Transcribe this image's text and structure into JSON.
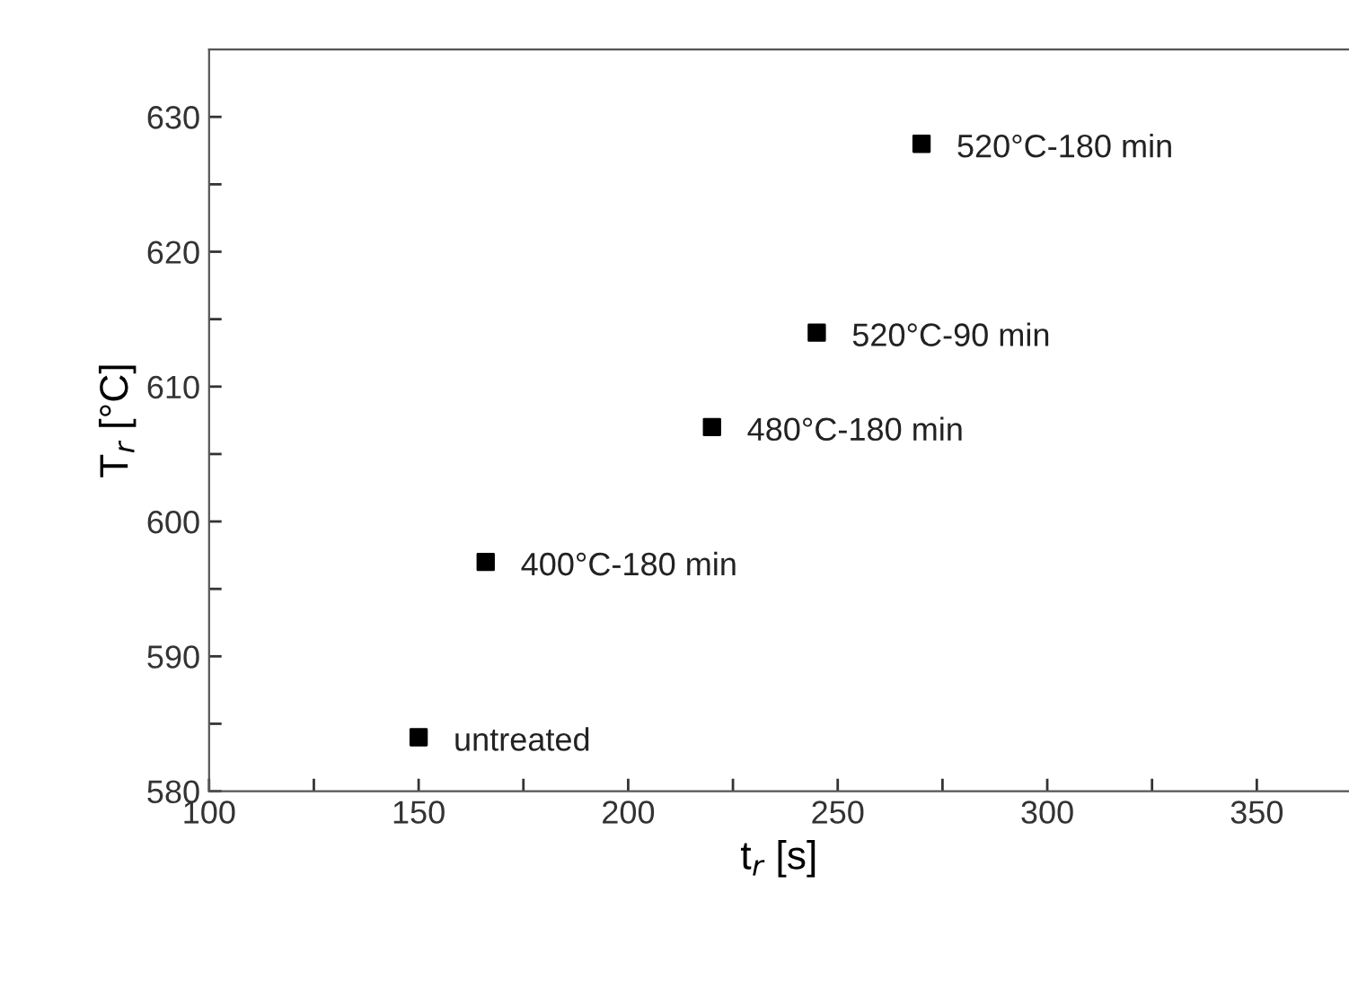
{
  "chart_data": {
    "type": "scatter",
    "xlabel": "t$_{r}$ [s]",
    "ylabel": "T$_{r}$ [°C]",
    "x": [
      150,
      166,
      220,
      245,
      270
    ],
    "values": [
      584,
      597,
      607,
      614,
      628
    ],
    "color": "#000000",
    "marker": "square",
    "grid": false,
    "legend": false,
    "xlim": [
      100,
      372
    ],
    "ylim": [
      580,
      635
    ],
    "xticks": [
      100,
      {
        "value": 125,
        "label": null
      },
      150,
      {
        "value": 175,
        "label": null
      },
      200,
      {
        "value": 225,
        "label": null
      },
      250,
      {
        "value": 275,
        "label": null
      },
      300,
      {
        "value": 325,
        "label": null
      },
      350
    ],
    "yticks": [
      580,
      {
        "value": 585,
        "label": null
      },
      590,
      {
        "value": 595,
        "label": null
      },
      600,
      {
        "value": 605,
        "label": null
      },
      610,
      {
        "value": 615,
        "label": null
      },
      620,
      {
        "value": 625,
        "label": null
      },
      630
    ],
    "annotations": [
      {
        "text": "untreated",
        "x": 150,
        "y": 584
      },
      {
        "text": "400°C-180 min",
        "x": 166,
        "y": 597
      },
      {
        "text": "480°C-180 min",
        "x": 220,
        "y": 607
      },
      {
        "text": "520°C-90 min",
        "x": 245,
        "y": 614
      },
      {
        "text": "520°C-180 min",
        "x": 270,
        "y": 628
      }
    ]
  }
}
